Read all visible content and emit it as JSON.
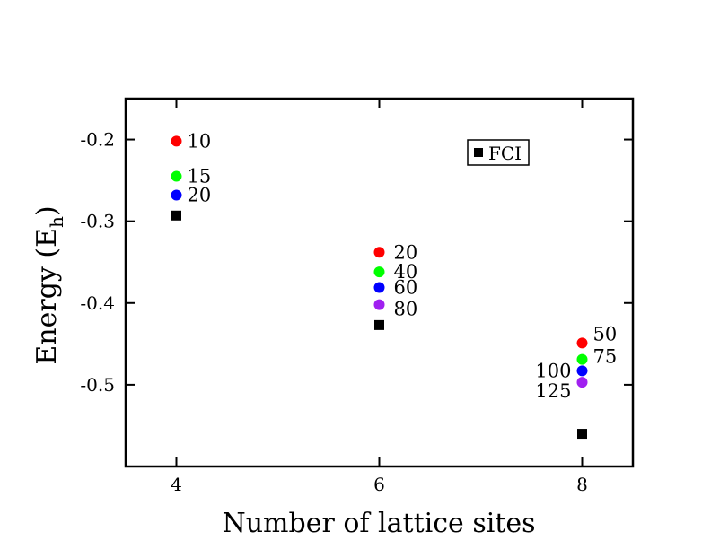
{
  "chart_data": {
    "type": "scatter",
    "xlabel": "Number of lattice sites",
    "ylabel_main": "Energy (E",
    "ylabel_sub": "h",
    "ylabel_close": ")",
    "xlim": [
      3.5,
      8.5
    ],
    "ylim": [
      -0.6,
      -0.15
    ],
    "x_ticks": [
      4,
      6,
      8
    ],
    "y_ticks": [
      -0.2,
      -0.3,
      -0.4,
      -0.5
    ],
    "x_tick_labels": [
      "4",
      "6",
      "8"
    ],
    "y_tick_labels": [
      "-0.2",
      "-0.3",
      "-0.4",
      "-0.5"
    ],
    "grid": false,
    "legend": {
      "position": "top-right",
      "entries": [
        "FCI"
      ]
    },
    "colors": {
      "red": "#ff0000",
      "green": "#00ff00",
      "blue": "#0000ff",
      "purple": "#a020f0",
      "fci": "#000000"
    },
    "points": [
      {
        "x": 4,
        "y": -0.202,
        "color": "red",
        "label": "10"
      },
      {
        "x": 4,
        "y": -0.245,
        "color": "green",
        "label": "15"
      },
      {
        "x": 4,
        "y": -0.268,
        "color": "blue",
        "label": "20"
      },
      {
        "x": 6,
        "y": -0.338,
        "color": "red",
        "label": "20"
      },
      {
        "x": 6,
        "y": -0.362,
        "color": "green",
        "label": "40"
      },
      {
        "x": 6,
        "y": -0.381,
        "color": "blue",
        "label": "60"
      },
      {
        "x": 6,
        "y": -0.402,
        "color": "purple",
        "label": "80"
      },
      {
        "x": 8,
        "y": -0.449,
        "color": "red",
        "label": "50"
      },
      {
        "x": 8,
        "y": -0.469,
        "color": "green",
        "label": "75"
      },
      {
        "x": 8,
        "y": -0.483,
        "color": "blue",
        "label": "100"
      },
      {
        "x": 8,
        "y": -0.497,
        "color": "purple",
        "label": "125"
      }
    ],
    "fci": [
      {
        "x": 4,
        "y": -0.293
      },
      {
        "x": 6,
        "y": -0.427
      },
      {
        "x": 8,
        "y": -0.56
      }
    ]
  }
}
